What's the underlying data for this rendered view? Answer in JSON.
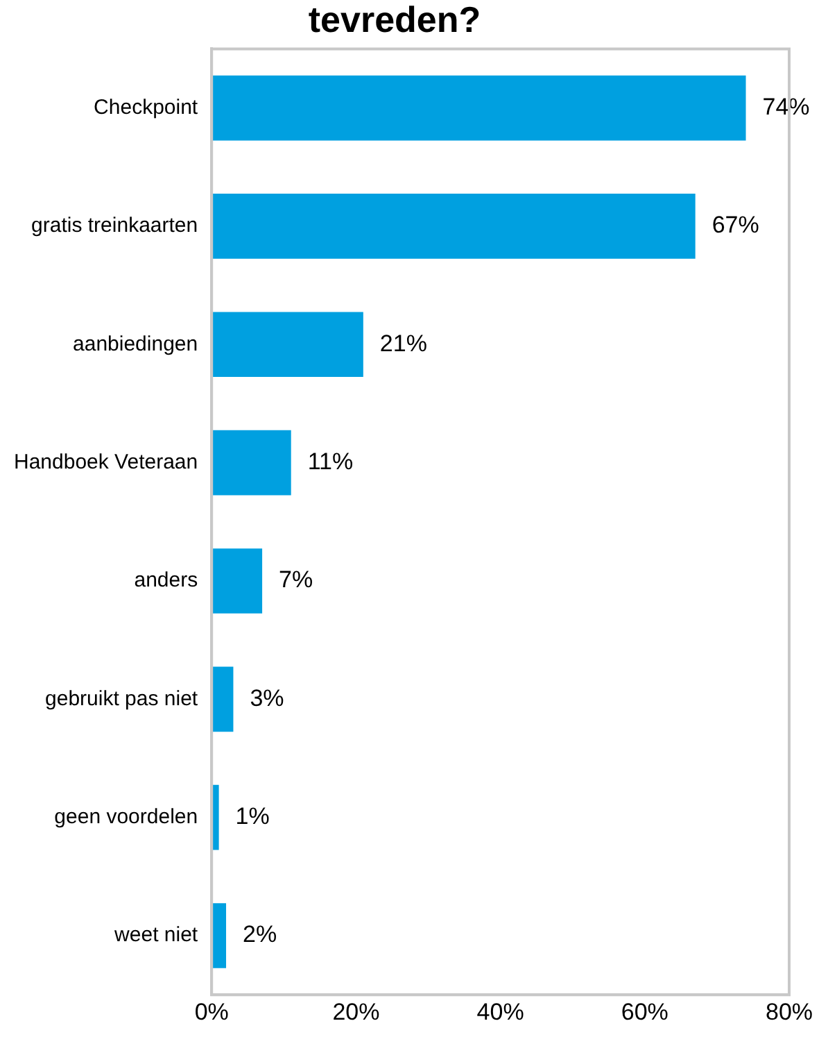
{
  "chart_data": {
    "type": "bar",
    "orientation": "horizontal",
    "title": "tevreden?",
    "categories": [
      "Checkpoint",
      "gratis treinkaarten",
      "aanbiedingen",
      "Handboek Veteraan",
      "anders",
      "gebruikt pas niet",
      "geen voordelen",
      "weet niet"
    ],
    "values": [
      74,
      67,
      21,
      11,
      7,
      3,
      1,
      2
    ],
    "color": "#00a0e0",
    "xlim": [
      0,
      80
    ],
    "xticks": [
      {
        "value": 0,
        "label": "0%"
      },
      {
        "value": 20,
        "label": "20%"
      },
      {
        "value": 40,
        "label": "40%"
      },
      {
        "value": 60,
        "label": "60%"
      },
      {
        "value": 80,
        "label": "80%"
      }
    ],
    "value_labels": [
      "74%",
      "67%",
      "21%",
      "11%",
      "7%",
      "3%",
      "1%",
      "2%"
    ],
    "grid": false,
    "legend": false
  }
}
